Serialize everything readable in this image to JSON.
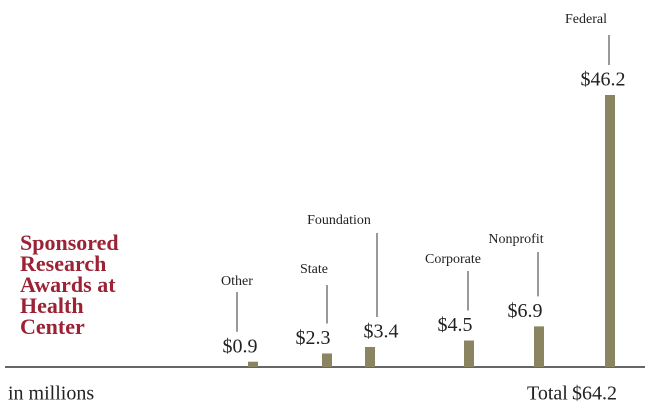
{
  "chart_data": {
    "type": "bar",
    "title": "Sponsored Research Awards at Health Center",
    "subtitle": "in millions",
    "categories": [
      "Other",
      "State",
      "Foundation",
      "Corporate",
      "Nonprofit",
      "Federal"
    ],
    "values": [
      0.9,
      2.3,
      3.4,
      4.5,
      6.9,
      46.2
    ],
    "value_labels": [
      "$0.9",
      "$2.3",
      "$3.4",
      "$4.5",
      "$6.9",
      "$46.2"
    ],
    "color": "#8a8560",
    "total_label": "Total",
    "total": "$64.2"
  }
}
